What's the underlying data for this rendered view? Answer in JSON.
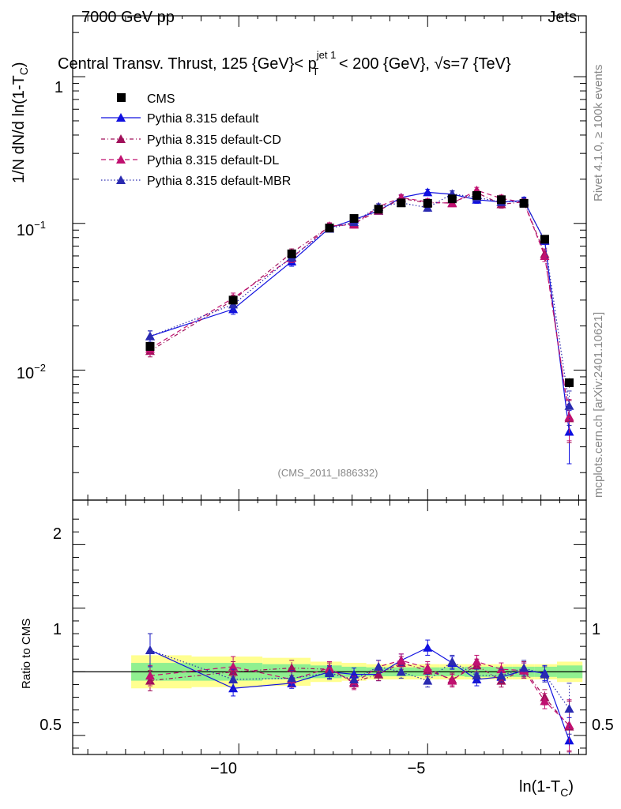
{
  "header": {
    "left": "7000 GeV pp",
    "right": "Jets",
    "title_prefix": "Central Transv. Thrust, 125 {GeV}< p",
    "title_sup": "jet 1",
    "title_sub": "T",
    "title_suffix": " < 200 {GeV}, √s=7 {TeV}",
    "side_top": "Rivet 4.1.0, ≥ 100k events",
    "side_bottom": "mcplots.cern.ch [arXiv:2401.10621]",
    "analysis_id": "(CMS_2011_I886332)"
  },
  "axes": {
    "ylabel_main": "1/N    dN/d ln(1-T",
    "ylabel_main_sub": "C",
    "ylabel_main_close": ")",
    "ylabel_ratio": "Ratio to CMS",
    "xlabel": "ln(1-T",
    "xlabel_sub": "C",
    "xlabel_close": ")",
    "ytick_1": "1",
    "ytick_01": "10",
    "ytick_01_exp": "−1",
    "ytick_001": "10",
    "ytick_001_exp": "−2",
    "rtick_2": "2",
    "rtick_1_left": "1",
    "rtick_1_right": "1",
    "rtick_05_left": "0.5",
    "rtick_05_right": "0.5",
    "xtick_m10": "−10",
    "xtick_m5": "−5"
  },
  "legend": {
    "cms": "CMS",
    "default": "Pythia 8.315 default",
    "cd": "Pythia 8.315 default-CD",
    "dl": "Pythia 8.315 default-DL",
    "mbr": "Pythia 8.315 default-MBR"
  },
  "colors": {
    "data": "#000000",
    "default": "#1010e0",
    "cd": "#a0105a",
    "dl": "#c01070",
    "mbr": "#2a2ab0",
    "band_inner": "#90f090",
    "band_outer": "#ffff90"
  },
  "chart_data": {
    "type": "scatter",
    "x": [
      -12.35,
      -10.15,
      -8.6,
      -7.6,
      -6.95,
      -6.3,
      -5.7,
      -5.0,
      -4.35,
      -3.7,
      -3.05,
      -2.45,
      -1.9,
      -1.25
    ],
    "xlim": [
      -14.4,
      -0.8
    ],
    "main": {
      "yscale": "log",
      "ylim": [
        0.0013,
        2.6
      ],
      "series": [
        {
          "name": "CMS",
          "values": [
            0.0145,
            0.03,
            0.062,
            0.093,
            0.108,
            0.125,
            0.138,
            0.137,
            0.147,
            0.155,
            0.145,
            0.137,
            0.078,
            0.0082
          ],
          "errors": [
            0.0015,
            0.0025,
            0.004,
            0.005,
            0.005,
            0.006,
            0.006,
            0.006,
            0.006,
            0.007,
            0.007,
            0.007,
            0.004,
            0.0006
          ]
        },
        {
          "name": "Pythia 8.315 default",
          "values": [
            0.017,
            0.026,
            0.055,
            0.093,
            0.106,
            0.122,
            0.15,
            0.163,
            0.158,
            0.145,
            0.14,
            0.143,
            0.076,
            0.0038
          ],
          "errors": [
            0.0015,
            0.002,
            0.004,
            0.005,
            0.005,
            0.006,
            0.007,
            0.008,
            0.008,
            0.008,
            0.008,
            0.008,
            0.004,
            0.0015
          ]
        },
        {
          "name": "Pythia 8.315 default-CD",
          "values": [
            0.0135,
            0.03,
            0.063,
            0.095,
            0.1,
            0.122,
            0.148,
            0.138,
            0.138,
            0.162,
            0.135,
            0.14,
            0.062,
            0.0047
          ],
          "errors": [
            0.0012,
            0.0025,
            0.004,
            0.005,
            0.005,
            0.006,
            0.007,
            0.007,
            0.007,
            0.008,
            0.008,
            0.008,
            0.005,
            0.0015
          ]
        },
        {
          "name": "Pythia 8.315 default-DL",
          "values": [
            0.014,
            0.031,
            0.058,
            0.096,
            0.098,
            0.13,
            0.15,
            0.14,
            0.137,
            0.168,
            0.148,
            0.139,
            0.06,
            0.0048
          ],
          "errors": [
            0.0012,
            0.0025,
            0.004,
            0.005,
            0.005,
            0.006,
            0.007,
            0.007,
            0.007,
            0.008,
            0.008,
            0.008,
            0.005,
            0.0015
          ]
        },
        {
          "name": "Pythia 8.315 default-MBR",
          "values": [
            0.017,
            0.028,
            0.059,
            0.092,
            0.102,
            0.13,
            0.138,
            0.128,
            0.159,
            0.15,
            0.14,
            0.141,
            0.077,
            0.0057
          ],
          "errors": [
            0.0015,
            0.0025,
            0.004,
            0.005,
            0.005,
            0.006,
            0.007,
            0.007,
            0.008,
            0.008,
            0.008,
            0.008,
            0.004,
            0.0015
          ]
        }
      ]
    },
    "ratio": {
      "ylim": [
        0.35,
        2.35
      ],
      "band_inner": [
        0.07,
        0.07,
        0.06,
        0.05,
        0.04,
        0.035,
        0.035,
        0.035,
        0.035,
        0.04,
        0.04,
        0.04,
        0.04,
        0.05
      ],
      "band_outer": [
        0.13,
        0.12,
        0.11,
        0.08,
        0.07,
        0.06,
        0.06,
        0.06,
        0.06,
        0.06,
        0.06,
        0.06,
        0.06,
        0.08
      ],
      "series": [
        {
          "name": "Pythia 8.315 default",
          "values": [
            1.17,
            0.87,
            0.91,
            1.0,
            0.98,
            0.98,
            1.09,
            1.19,
            1.07,
            0.94,
            0.96,
            1.01,
            0.99,
            0.46
          ],
          "errors": [
            0.13,
            0.06,
            0.04,
            0.05,
            0.05,
            0.05,
            0.05,
            0.06,
            0.05,
            0.05,
            0.05,
            0.06,
            0.06,
            0.18
          ]
        },
        {
          "name": "Pythia 8.315 default-CD",
          "values": [
            0.93,
            1.0,
            1.03,
            1.02,
            0.92,
            0.98,
            1.07,
            1.01,
            0.94,
            1.05,
            0.93,
            1.02,
            0.8,
            0.57
          ],
          "errors": [
            0.08,
            0.08,
            0.06,
            0.05,
            0.05,
            0.05,
            0.05,
            0.05,
            0.05,
            0.05,
            0.05,
            0.06,
            0.06,
            0.2
          ]
        },
        {
          "name": "Pythia 8.315 default-DL",
          "values": [
            0.97,
            1.04,
            0.94,
            1.03,
            0.91,
            1.04,
            1.09,
            1.03,
            0.93,
            1.08,
            1.02,
            1.01,
            0.77,
            0.58
          ],
          "errors": [
            0.08,
            0.08,
            0.06,
            0.05,
            0.05,
            0.05,
            0.05,
            0.05,
            0.05,
            0.05,
            0.05,
            0.06,
            0.06,
            0.2
          ]
        },
        {
          "name": "Pythia 8.315 default-MBR",
          "values": [
            1.17,
            0.94,
            0.95,
            0.99,
            0.94,
            1.04,
            1.0,
            0.93,
            1.08,
            0.97,
            0.97,
            1.03,
            0.98,
            0.71
          ],
          "errors": [
            0.13,
            0.08,
            0.06,
            0.05,
            0.05,
            0.05,
            0.05,
            0.05,
            0.05,
            0.05,
            0.05,
            0.06,
            0.06,
            0.2
          ]
        }
      ]
    }
  }
}
